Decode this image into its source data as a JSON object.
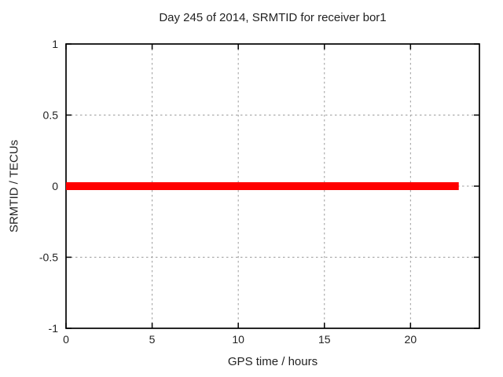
{
  "chart_data": {
    "type": "line",
    "title": "Day 245 of 2014, SRMTID for receiver bor1",
    "xlabel": "GPS time / hours",
    "ylabel": "SRMTID / TECUs",
    "xlim": [
      0,
      24
    ],
    "ylim": [
      -1,
      1
    ],
    "xticks": {
      "values": [
        0,
        5,
        10,
        15,
        20
      ],
      "labels": [
        "0",
        "5",
        "10",
        "15",
        "20"
      ]
    },
    "yticks": {
      "values": [
        -1,
        -0.5,
        0,
        0.5,
        1
      ],
      "labels": [
        "-1",
        "-0.5",
        "0",
        "0.5",
        "1"
      ]
    },
    "grid": true,
    "grid_color": "#9c9c9c",
    "border_color": "#000000",
    "text_color": "#222222",
    "legend": "none",
    "series": [
      {
        "name": "srmtid",
        "color": "#ff0000",
        "linewidth": 10,
        "points": [
          [
            0,
            0
          ],
          [
            22.8,
            0
          ]
        ]
      }
    ]
  }
}
